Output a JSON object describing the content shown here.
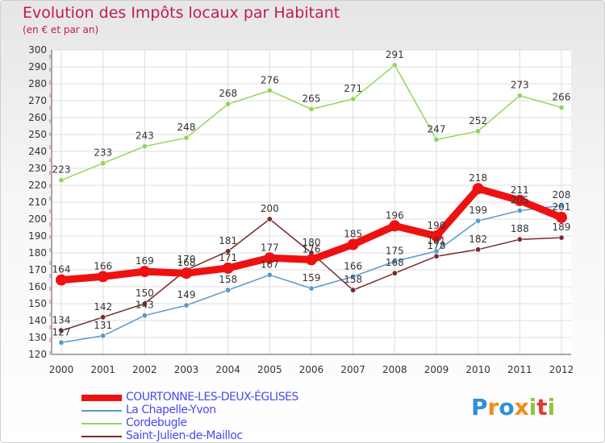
{
  "title": "Evolution des Impôts locaux par Habitant",
  "subtitle": "(en € et par an)",
  "logo": {
    "text": "Proxiti",
    "colors": [
      "#2f8fd8",
      "#f28c1a",
      "#8cc63f",
      "#e53935"
    ]
  },
  "chart_data": {
    "type": "line",
    "title": "Evolution des Impôts locaux par Habitant",
    "ylabel": "(en € et par an)",
    "xlabel": "",
    "x": [
      2000,
      2001,
      2002,
      2003,
      2004,
      2005,
      2006,
      2007,
      2008,
      2009,
      2010,
      2011,
      2012
    ],
    "x_labels": [
      "2000",
      "2001",
      "2002",
      "2003",
      "2004",
      "2005",
      "2006",
      "2007",
      "2008",
      "2009",
      "2010",
      "2011",
      "2012"
    ],
    "ylim": [
      120,
      300
    ],
    "yticks": [
      120,
      130,
      140,
      150,
      160,
      170,
      180,
      190,
      200,
      210,
      220,
      230,
      240,
      250,
      260,
      270,
      280,
      290,
      300
    ],
    "grid": true,
    "legend_position": "bottom-left",
    "series": [
      {
        "name": "COURTONNE-LES-DEUX-ÉGLISES",
        "color": "#ee1111",
        "values": [
          164,
          166,
          169,
          168,
          171,
          177,
          176,
          185,
          196,
          190,
          218,
          211,
          201
        ],
        "label_values": [
          "164",
          "166",
          "169",
          "168",
          "171",
          "177",
          "176",
          "185",
          "196",
          "190",
          "218",
          "211",
          "201"
        ],
        "style": "thick"
      },
      {
        "name": "La Chapelle-Yvon",
        "color": "#5a98cc",
        "values": [
          127,
          131,
          143,
          149,
          158,
          167,
          159,
          166,
          175,
          181,
          199,
          205,
          208
        ],
        "label_values": [
          "127",
          "131",
          "143",
          "149",
          "158",
          "167",
          "159",
          "166",
          "175",
          "181",
          "199",
          "205",
          "208"
        ],
        "style": "thin"
      },
      {
        "name": "Cordebugle",
        "color": "#8fd65a",
        "values": [
          223,
          233,
          243,
          248,
          268,
          276,
          265,
          271,
          291,
          247,
          252,
          273,
          266
        ],
        "label_values": [
          "223",
          "233",
          "243",
          "248",
          "268",
          "276",
          "265",
          "271",
          "291",
          "247",
          "252",
          "273",
          "266"
        ],
        "style": "thin"
      },
      {
        "name": "Saint-Julien-de-Mailloc",
        "color": "#7a2a2a",
        "values": [
          134,
          142,
          150,
          170,
          181,
          200,
          180,
          158,
          168,
          178,
          182,
          188,
          189
        ],
        "label_values": [
          "134",
          "142",
          "150",
          "170",
          "181",
          "200",
          "180",
          "158",
          "168",
          "178",
          "182",
          "188",
          "189"
        ],
        "style": "thin"
      }
    ]
  }
}
